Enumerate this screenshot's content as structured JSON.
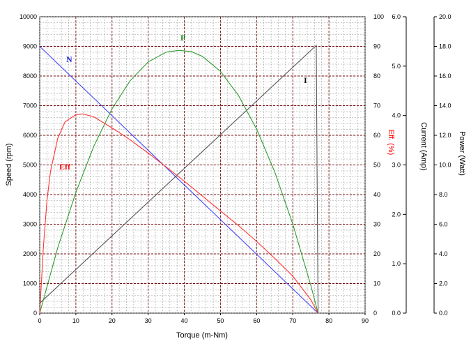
{
  "chart_data": {
    "type": "line",
    "xlabel": "Torque (m-Nm)",
    "xlim": [
      0,
      90
    ],
    "x_ticks": [
      "0",
      "10",
      "20",
      "30",
      "40",
      "50",
      "60",
      "70",
      "80",
      "90"
    ],
    "grid": true,
    "axes": {
      "speed": {
        "label": "Speed (rpm)",
        "range": [
          0,
          10000
        ],
        "ticks": [
          "0",
          "1000",
          "2000",
          "3000",
          "4000",
          "5000",
          "6000",
          "7000",
          "8000",
          "9000",
          "10000"
        ]
      },
      "eff": {
        "label": "Eff. (%)",
        "range": [
          0,
          100
        ],
        "ticks": [
          "0",
          "10",
          "20",
          "30",
          "40",
          "50",
          "60",
          "70",
          "80",
          "90",
          "100"
        ],
        "color": "#ff0000"
      },
      "current": {
        "label": "Current (Amp)",
        "range": [
          0,
          6
        ],
        "ticks": [
          "0.0",
          "1.0",
          "2.0",
          "3.0",
          "4.0",
          "5.0",
          "6.0"
        ]
      },
      "power": {
        "label": "Power (Watt)",
        "range": [
          0,
          20
        ],
        "ticks": [
          "0.0",
          "2.0",
          "4.0",
          "6.0",
          "8.0",
          "10.0",
          "12.0",
          "14.0",
          "16.0",
          "18.0",
          "20.0"
        ]
      }
    },
    "series": [
      {
        "name": "N",
        "axis": "speed",
        "color": "#4444ff",
        "x": [
          0,
          77
        ],
        "y": [
          9000,
          0
        ]
      },
      {
        "name": "I",
        "axis": "current",
        "color": "#555555",
        "x": [
          0,
          76.5,
          77
        ],
        "y": [
          0.2,
          5.42,
          0
        ]
      },
      {
        "name": "P",
        "axis": "power",
        "color": "#2e9b2e",
        "x": [
          0,
          5,
          10,
          15,
          20,
          25,
          30,
          35,
          38.5,
          42,
          45,
          50,
          55,
          60,
          65,
          70,
          75,
          77
        ],
        "y": [
          0,
          4.42,
          8.15,
          11.28,
          13.79,
          15.68,
          16.95,
          17.61,
          17.73,
          17.64,
          17.32,
          16.32,
          14.68,
          12.42,
          9.53,
          6.01,
          1.86,
          0
        ]
      },
      {
        "name": "Eff",
        "axis": "eff",
        "color": "#ff3333",
        "x": [
          0,
          1,
          2,
          3,
          5,
          7,
          10,
          12,
          15,
          20,
          25,
          30,
          35,
          40,
          45,
          50,
          55,
          60,
          65,
          70,
          75,
          77
        ],
        "y": [
          0,
          22,
          38,
          48,
          59,
          64.5,
          67,
          67.2,
          66.2,
          62.5,
          58.5,
          54,
          49.3,
          44.5,
          39.5,
          34.5,
          29.5,
          24.2,
          18.5,
          12.5,
          4.5,
          0
        ]
      }
    ]
  }
}
